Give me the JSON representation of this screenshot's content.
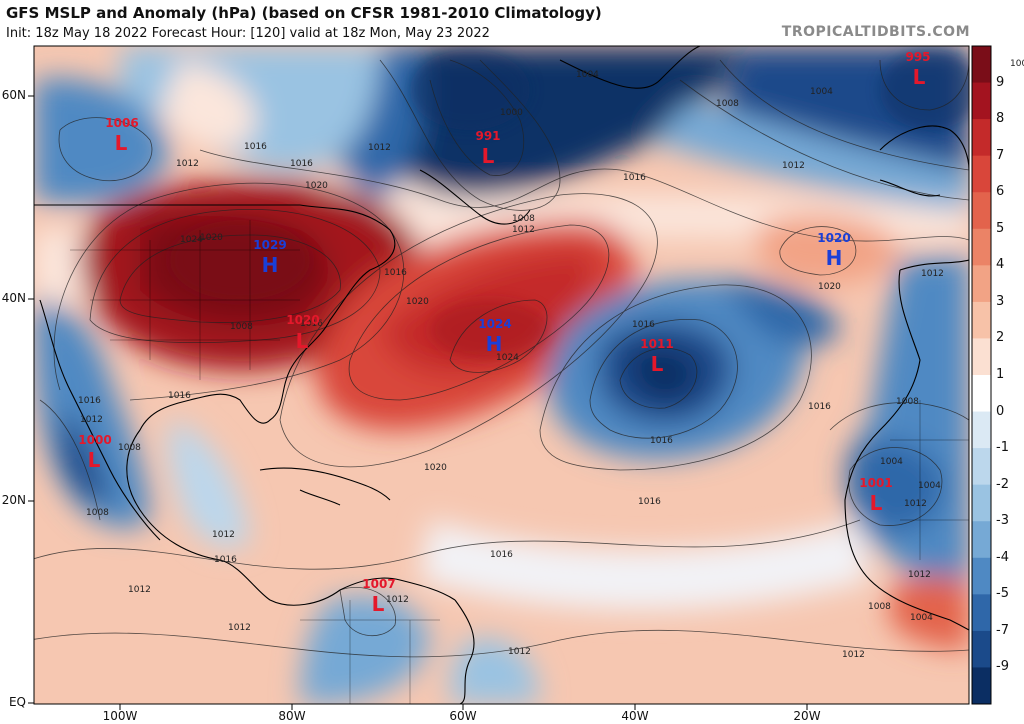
{
  "header": {
    "title": "GFS MSLP and Anomaly (hPa) (based on CFSR 1981-2010 Climatology)",
    "subtitle": "Init: 18z May 18 2022   Forecast Hour: [120]   valid at 18z Mon, May 23 2022",
    "credit": "TROPICALTIDBITS.COM"
  },
  "axes": {
    "lat_labels": [
      "60N",
      "40N",
      "20N",
      "EQ"
    ],
    "lon_labels": [
      "100W",
      "80W",
      "60W",
      "40W",
      "20W"
    ]
  },
  "colorbar": {
    "labels": [
      "9",
      "8",
      "7",
      "6",
      "5",
      "4",
      "3",
      "2",
      "1",
      "0",
      "-1",
      "-2",
      "-3",
      "-4",
      "-5",
      "-7",
      "-9"
    ],
    "colors": [
      "#7a0d18",
      "#a3131f",
      "#c42a2a",
      "#d9463a",
      "#e3634c",
      "#eb8366",
      "#f2a385",
      "#f7c2a8",
      "#fbe0d2",
      "#ffffff",
      "#dbe9f4",
      "#bcd7ec",
      "#9ac3e2",
      "#76a9d5",
      "#4f89c3",
      "#2f67a9",
      "#1b4a8a",
      "#0b2e63"
    ]
  },
  "pressure_centers": [
    {
      "type": "L",
      "value": "1006"
    },
    {
      "type": "L",
      "value": "991"
    },
    {
      "type": "L",
      "value": "995"
    },
    {
      "type": "H",
      "value": "1029"
    },
    {
      "type": "L",
      "value": "1020"
    },
    {
      "type": "H",
      "value": "1024"
    },
    {
      "type": "L",
      "value": "1011"
    },
    {
      "type": "H",
      "value": "1020"
    },
    {
      "type": "L",
      "value": "1000"
    },
    {
      "type": "L",
      "value": "1001"
    },
    {
      "type": "L",
      "value": "1007"
    }
  ],
  "isobar_labels": [
    "1008",
    "1004",
    "1000",
    "1008",
    "1004",
    "1016",
    "1012",
    "1016",
    "1020",
    "1012",
    "1008",
    "1012",
    "1016",
    "1020",
    "1024",
    "1016",
    "1020",
    "1024",
    "1016",
    "1016",
    "1012",
    "1020",
    "1012",
    "1016",
    "1020",
    "1016",
    "1016",
    "1016",
    "1016",
    "1012",
    "1008",
    "1012",
    "1008",
    "1012",
    "1016",
    "1012",
    "1012",
    "1016",
    "1008",
    "1004",
    "1012",
    "1004",
    "1008",
    "1012",
    "1012",
    "1008",
    "1004",
    "1012"
  ],
  "colors": {
    "low": "#e4182b",
    "high": "#1a3fd8",
    "title": "#111111",
    "credit": "#8a8a8a"
  }
}
